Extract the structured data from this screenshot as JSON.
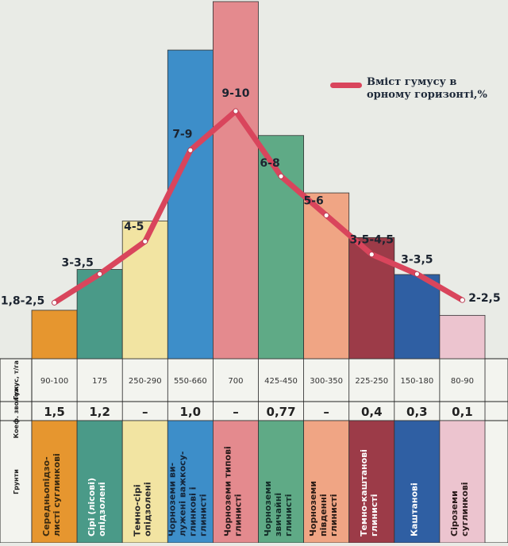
{
  "legend": {
    "label": "Вміст гумусу в\nорному горизонті,%",
    "color": "#d9455c"
  },
  "row_headers": {
    "humus": "Гумус, т/га",
    "coef": "Коеф. зволож.",
    "soils": "Грунти"
  },
  "chart_data": {
    "type": "bar",
    "ylim": [
      0,
      1
    ],
    "line_series_name": "Вміст гумусу в орному горизонті,%",
    "categories": [
      {
        "soil": "Середньопідзо-\nлисті суглинкові",
        "humus_t_ha": "90-100",
        "humus_mean": 95,
        "coef": "1,5",
        "humus_pct_label": "1,8-2,5",
        "humus_pct_mean": 2.15,
        "color": "#e6962f",
        "text_color": "#3a2a10"
      },
      {
        "soil": "Сірі (лісові)\nопідзолені",
        "humus_t_ha": "175",
        "humus_mean": 175,
        "coef": "1,2",
        "humus_pct_label": "3-3,5",
        "humus_pct_mean": 3.25,
        "color": "#4a9a88",
        "text_color": "#ffffff"
      },
      {
        "soil": "Темно-сірі\nопідзолені",
        "humus_t_ha": "250-290",
        "humus_mean": 270,
        "coef": "–",
        "humus_pct_label": "4-5",
        "humus_pct_mean": 4.5,
        "color": "#f2e4a2",
        "text_color": "#2a2a2a"
      },
      {
        "soil": "Чорноземи ви-\nлужені важкосу-\nглинкові і\nглинисті",
        "humus_t_ha": "550-660",
        "humus_mean": 605,
        "coef": "1,0",
        "humus_pct_label": "7-9",
        "humus_pct_mean": 8,
        "color": "#3d8ec9",
        "text_color": "#15263a"
      },
      {
        "soil": "Чорноземи типові\nглинисті",
        "humus_t_ha": "700",
        "humus_mean": 700,
        "coef": "–",
        "humus_pct_label": "9-10",
        "humus_pct_mean": 9.5,
        "color": "#e48a8e",
        "text_color": "#2a1a1a"
      },
      {
        "soil": "Чорноземи\nзвичайні\nглинисті",
        "humus_t_ha": "425-450",
        "humus_mean": 437.5,
        "coef": "0,77",
        "humus_pct_label": "6-8",
        "humus_pct_mean": 7,
        "color": "#5faa86",
        "text_color": "#14302a"
      },
      {
        "soil": "Чорноземи\nпівденні\nглинисті",
        "humus_t_ha": "300-350",
        "humus_mean": 325,
        "coef": "–",
        "humus_pct_label": "5-6",
        "humus_pct_mean": 5.5,
        "color": "#f0a584",
        "text_color": "#2a1a14"
      },
      {
        "soil": "Темно-каштанові\nглинисті",
        "humus_t_ha": "225-250",
        "humus_mean": 237.5,
        "coef": "0,4",
        "humus_pct_label": "3,5-4,5",
        "humus_pct_mean": 4,
        "color": "#9c3b48",
        "text_color": "#ffffff"
      },
      {
        "soil": "Каштанові",
        "humus_t_ha": "150-180",
        "humus_mean": 165,
        "coef": "0,3",
        "humus_pct_label": "3-3,5",
        "humus_pct_mean": 3.25,
        "color": "#2f5fa3",
        "text_color": "#ffffff"
      },
      {
        "soil": "Сіроземи\nсуглинкові",
        "humus_t_ha": "80-90",
        "humus_mean": 85,
        "coef": "0,1",
        "humus_pct_label": "2-2,5",
        "humus_pct_mean": 2.25,
        "color": "#ecc4cf",
        "text_color": "#2a1a1a"
      }
    ]
  }
}
